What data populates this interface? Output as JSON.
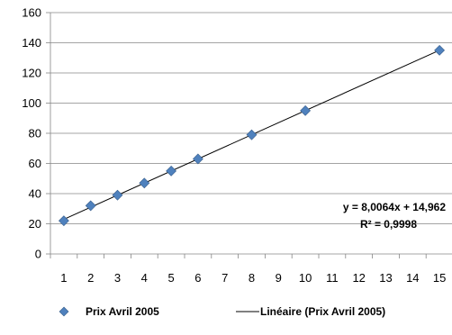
{
  "chart_data": {
    "type": "scatter",
    "x_categories": [
      1,
      2,
      3,
      4,
      5,
      6,
      7,
      8,
      9,
      10,
      11,
      12,
      13,
      14,
      15
    ],
    "ylim": [
      0,
      160
    ],
    "yticks": [
      0,
      20,
      40,
      60,
      80,
      100,
      120,
      140,
      160
    ],
    "grid": "horizontal",
    "legend_position": "bottom",
    "series": [
      {
        "name": "Prix Avril 2005",
        "marker": "diamond",
        "color": "#4F81BD",
        "points": [
          {
            "x": 1,
            "y": 22
          },
          {
            "x": 2,
            "y": 32
          },
          {
            "x": 3,
            "y": 39
          },
          {
            "x": 4,
            "y": 47
          },
          {
            "x": 5,
            "y": 55
          },
          {
            "x": 6,
            "y": 63
          },
          {
            "x": 8,
            "y": 79
          },
          {
            "x": 10,
            "y": 95
          },
          {
            "x": 15,
            "y": 135
          }
        ]
      }
    ],
    "trendline": {
      "name": "Linéaire (Prix Avril 2005)",
      "slope": 8.0064,
      "intercept": 14.962,
      "x_range": [
        1,
        15
      ],
      "color": "#000000",
      "equation_label": "y = 8,0064x + 14,962",
      "r2_label": "R² = 0,9998"
    }
  }
}
